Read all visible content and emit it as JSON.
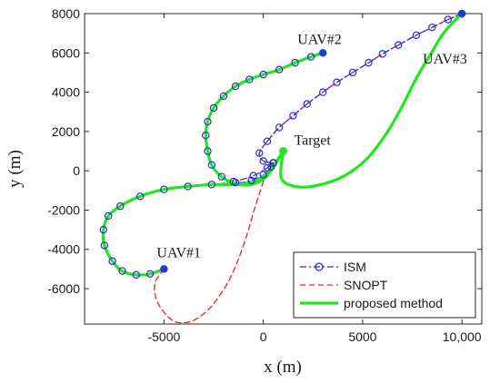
{
  "chart_data": {
    "type": "line",
    "xlabel": "x (m)",
    "ylabel": "y (m)",
    "xlim": [
      -9000,
      11000
    ],
    "ylim": [
      -7800,
      8000
    ],
    "xticks": [
      -5000,
      0,
      5000,
      10000
    ],
    "xtick_labels": [
      "-5000",
      "0",
      "5000",
      "10,000"
    ],
    "yticks": [
      -6000,
      -4000,
      -2000,
      0,
      2000,
      4000,
      6000,
      8000
    ],
    "ytick_labels": [
      "-6000",
      "-4000",
      "-2000",
      "0",
      "2000",
      "4000",
      "6000",
      "8000"
    ],
    "grid": false,
    "legend_position": "bottom-right",
    "annotations": [
      {
        "text": "UAV#1",
        "x": -5000,
        "y": -5000
      },
      {
        "text": "UAV#2",
        "x": 3000,
        "y": 6000
      },
      {
        "text": "UAV#3",
        "x": 10000,
        "y": 8000
      },
      {
        "text": "Target",
        "x": 1000,
        "y": 1000
      }
    ],
    "target": {
      "x": 1000,
      "y": 1000
    },
    "series": [
      {
        "name": "ISM",
        "color": "#2b2bd6",
        "style": "dash-dot with circle markers",
        "paths": [
          [
            [
              -5000,
              -5000
            ],
            [
              -5700,
              -5250
            ],
            [
              -6400,
              -5300
            ],
            [
              -7100,
              -5100
            ],
            [
              -7600,
              -4600
            ],
            [
              -8000,
              -3800
            ],
            [
              -8050,
              -3000
            ],
            [
              -7800,
              -2300
            ],
            [
              -7200,
              -1800
            ],
            [
              -6200,
              -1300
            ],
            [
              -5000,
              -950
            ],
            [
              -3800,
              -800
            ],
            [
              -2600,
              -700
            ],
            [
              -1500,
              -550
            ],
            [
              -500,
              -250
            ],
            [
              200,
              150
            ],
            [
              500,
              400
            ]
          ],
          [
            [
              3000,
              6000
            ],
            [
              2400,
              5800
            ],
            [
              1600,
              5500
            ],
            [
              800,
              5150
            ],
            [
              0,
              4900
            ],
            [
              -700,
              4650
            ],
            [
              -1400,
              4300
            ],
            [
              -2000,
              3800
            ],
            [
              -2500,
              3200
            ],
            [
              -2800,
              2500
            ],
            [
              -2900,
              1800
            ],
            [
              -2800,
              1000
            ],
            [
              -2600,
              300
            ],
            [
              -2100,
              -300
            ],
            [
              -1400,
              -600
            ],
            [
              -600,
              -500
            ],
            [
              0,
              -200
            ],
            [
              400,
              200
            ],
            [
              500,
              400
            ]
          ],
          [
            [
              10000,
              8000
            ],
            [
              9300,
              7700
            ],
            [
              8500,
              7300
            ],
            [
              7700,
              6900
            ],
            [
              6800,
              6400
            ],
            [
              6000,
              5950
            ],
            [
              5300,
              5500
            ],
            [
              4500,
              5000
            ],
            [
              3700,
              4500
            ],
            [
              3000,
              4000
            ],
            [
              2200,
              3400
            ],
            [
              1500,
              2800
            ],
            [
              800,
              2200
            ],
            [
              200,
              1500
            ],
            [
              -200,
              900
            ],
            [
              0,
              500
            ],
            [
              500,
              400
            ]
          ]
        ]
      },
      {
        "name": "SNOPT",
        "color": "#ff1a1a",
        "style": "dashed",
        "paths": [
          [
            [
              -5000,
              -5000
            ],
            [
              -5450,
              -5700
            ],
            [
              -5400,
              -6500
            ],
            [
              -5000,
              -7200
            ],
            [
              -4400,
              -7700
            ],
            [
              -3600,
              -7650
            ],
            [
              -2800,
              -7100
            ],
            [
              -2100,
              -6200
            ],
            [
              -1500,
              -5100
            ],
            [
              -900,
              -3500
            ],
            [
              -400,
              -1800
            ],
            [
              100,
              -300
            ],
            [
              500,
              400
            ]
          ],
          [
            [
              10000,
              8000
            ],
            [
              9300,
              7700
            ],
            [
              8500,
              7300
            ],
            [
              7700,
              6900
            ],
            [
              6800,
              6400
            ],
            [
              6000,
              5950
            ],
            [
              5300,
              5500
            ],
            [
              4500,
              5000
            ],
            [
              3700,
              4500
            ],
            [
              3000,
              4000
            ],
            [
              2200,
              3400
            ],
            [
              1500,
              2800
            ],
            [
              800,
              2200
            ],
            [
              200,
              1500
            ],
            [
              -200,
              900
            ],
            [
              0,
              500
            ],
            [
              500,
              400
            ]
          ]
        ]
      },
      {
        "name": "proposed method",
        "color": "#22e622",
        "style": "solid",
        "paths": [
          [
            [
              -5000,
              -5000
            ],
            [
              -5700,
              -5250
            ],
            [
              -6400,
              -5300
            ],
            [
              -7100,
              -5100
            ],
            [
              -7600,
              -4600
            ],
            [
              -8000,
              -3800
            ],
            [
              -8050,
              -3000
            ],
            [
              -7800,
              -2300
            ],
            [
              -7200,
              -1800
            ],
            [
              -6200,
              -1300
            ],
            [
              -5000,
              -950
            ],
            [
              -3800,
              -800
            ],
            [
              -2600,
              -700
            ],
            [
              -1500,
              -700
            ],
            [
              -500,
              -550
            ],
            [
              300,
              0
            ],
            [
              1000,
              1000
            ]
          ],
          [
            [
              3000,
              6000
            ],
            [
              2400,
              5800
            ],
            [
              1600,
              5500
            ],
            [
              800,
              5150
            ],
            [
              0,
              4900
            ],
            [
              -700,
              4650
            ],
            [
              -1400,
              4300
            ],
            [
              -2000,
              3800
            ],
            [
              -2500,
              3200
            ],
            [
              -2800,
              2500
            ],
            [
              -2900,
              1800
            ],
            [
              -2800,
              1000
            ],
            [
              -2600,
              300
            ],
            [
              -2100,
              -300
            ],
            [
              -1400,
              -650
            ],
            [
              -600,
              -700
            ],
            [
              200,
              -250
            ],
            [
              1000,
              1000
            ]
          ],
          [
            [
              10000,
              8000
            ],
            [
              9500,
              7500
            ],
            [
              9000,
              6900
            ],
            [
              8400,
              5900
            ],
            [
              7700,
              4700
            ],
            [
              7000,
              3300
            ],
            [
              6200,
              1900
            ],
            [
              5200,
              600
            ],
            [
              4000,
              -300
            ],
            [
              2700,
              -750
            ],
            [
              1600,
              -800
            ],
            [
              900,
              -350
            ],
            [
              1000,
              1000
            ]
          ]
        ]
      }
    ]
  }
}
